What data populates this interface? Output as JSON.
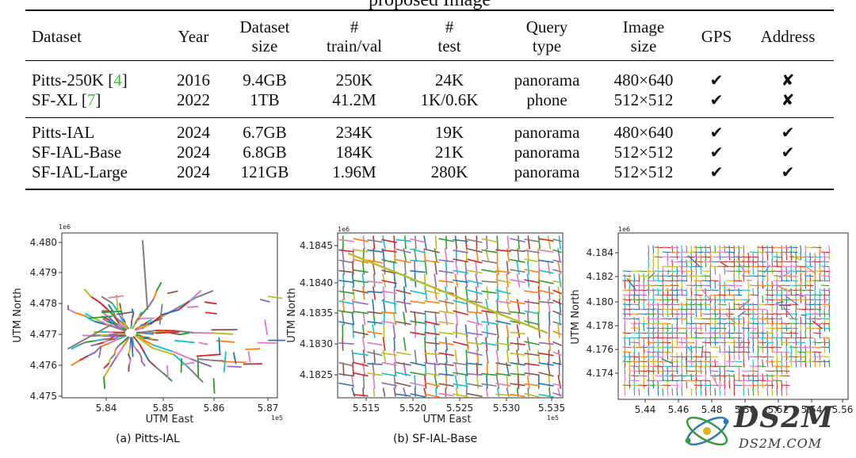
{
  "table": {
    "title_fragment": "proposed Image",
    "headers": [
      {
        "l1": "Dataset",
        "l2": ""
      },
      {
        "l1": "Year",
        "l2": ""
      },
      {
        "l1": "Dataset",
        "l2": "size"
      },
      {
        "l1": "#",
        "l2": "train/val"
      },
      {
        "l1": "#",
        "l2": "test"
      },
      {
        "l1": "Query",
        "l2": "type"
      },
      {
        "l1": "Image",
        "l2": "size"
      },
      {
        "l1": "GPS",
        "l2": ""
      },
      {
        "l1": "Address",
        "l2": ""
      }
    ],
    "rows": [
      {
        "name": "Pitts-250K ",
        "cite_open": "[",
        "cite_num": "4",
        "cite_close": "]",
        "year": "2016",
        "size": "9.4GB",
        "trainval": "250K",
        "test": "24K",
        "query": "panorama",
        "imgsize": "480×640",
        "gps": "✔",
        "address": "✘"
      },
      {
        "name": "SF-XL ",
        "cite_open": "[",
        "cite_num": "7",
        "cite_close": "]",
        "year": "2022",
        "size": "1TB",
        "trainval": "41.2M",
        "test": "1K/0.6K",
        "query": "phone",
        "imgsize": "512×512",
        "gps": "✔",
        "address": "✘"
      },
      {
        "name": "Pitts-IAL",
        "cite_open": "",
        "cite_num": "",
        "cite_close": "",
        "year": "2024",
        "size": "6.7GB",
        "trainval": "234K",
        "test": "19K",
        "query": "panorama",
        "imgsize": "480×640",
        "gps": "✔",
        "address": "✔"
      },
      {
        "name": "SF-IAL-Base",
        "cite_open": "",
        "cite_num": "",
        "cite_close": "",
        "year": "2024",
        "size": "6.8GB",
        "trainval": "184K",
        "test": "21K",
        "query": "panorama",
        "imgsize": "512×512",
        "gps": "✔",
        "address": "✔"
      },
      {
        "name": "SF-IAL-Large",
        "cite_open": "",
        "cite_num": "",
        "cite_close": "",
        "year": "2024",
        "size": "121GB",
        "trainval": "1.96M",
        "test": "280K",
        "query": "panorama",
        "imgsize": "512×512",
        "gps": "✔",
        "address": "✔"
      }
    ]
  },
  "figures": {
    "a": {
      "caption": "(a) Pitts-IAL",
      "exp_y": "1e6",
      "exp_x": "1e5",
      "xlabel": "UTM East",
      "ylabel": "UTM North",
      "xticks": [
        "5.84",
        "5.85",
        "5.86",
        "5.87"
      ],
      "yticks": [
        "4.480",
        "4.479",
        "4.478",
        "4.477",
        "4.476",
        "4.475"
      ]
    },
    "b": {
      "caption": "(b) SF-IAL-Base",
      "exp_y": "1e6",
      "exp_x": "1e5",
      "xlabel": "UTM East",
      "ylabel": "UTM North",
      "xticks": [
        "5.515",
        "5.520",
        "5.525",
        "5.530",
        "5.535"
      ],
      "yticks": [
        "4.1845",
        "4.1840",
        "4.1835",
        "4.1830",
        "4.1825"
      ]
    },
    "c": {
      "exp_y": "1e6",
      "ylabel": "UTM North",
      "xticks": [
        "5.44",
        "5.46",
        "5.48",
        "5.50",
        "5.52",
        "5.54",
        "5.56"
      ],
      "yticks": [
        "4.184",
        "4.182",
        "4.180",
        "4.178",
        "4.176",
        "4.174"
      ]
    }
  },
  "watermark": {
    "big": "DS2M",
    "small": "DS2M.COM"
  },
  "colors": {
    "route_palette": [
      "#1f77b4",
      "#ff7f0e",
      "#2ca02c",
      "#d62728",
      "#9467bd",
      "#8c564b",
      "#e377c2",
      "#7f7f7f",
      "#bcbd22",
      "#17becf"
    ],
    "citation": "#3fbf3f"
  }
}
